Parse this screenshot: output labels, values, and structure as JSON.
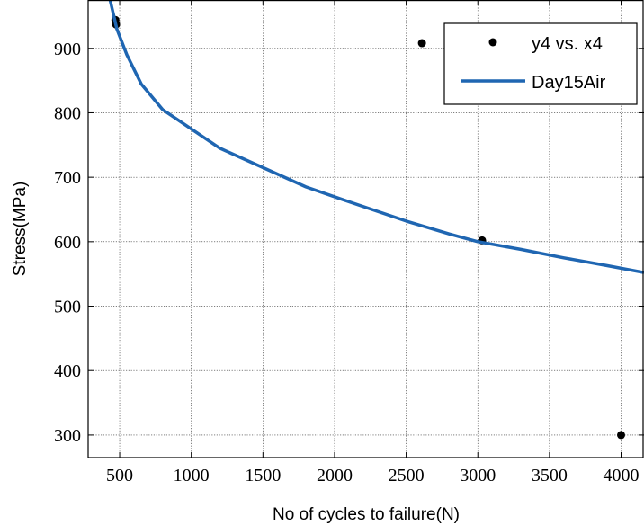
{
  "chart_data": {
    "type": "scatter",
    "xlabel": "No of cycles to failure(N)",
    "ylabel": "Stress(MPa)",
    "xlim": [
      280,
      4160
    ],
    "ylim": [
      265,
      975
    ],
    "xticks": [
      500,
      1000,
      1500,
      2000,
      2500,
      3000,
      3500,
      4000
    ],
    "yticks": [
      300,
      400,
      500,
      600,
      700,
      800,
      900
    ],
    "grid": true,
    "legend_position": "top-right",
    "series": [
      {
        "name": "y4 vs. x4",
        "kind": "scatter",
        "color": "#000000",
        "points": [
          [
            470,
            944
          ],
          [
            475,
            937
          ],
          [
            2610,
            908
          ],
          [
            3030,
            602
          ],
          [
            4000,
            300
          ]
        ]
      },
      {
        "name": "Day15Air",
        "kind": "line",
        "color": "#1f66b2",
        "x": [
          430,
          480,
          550,
          650,
          800,
          1000,
          1200,
          1500,
          1800,
          2100,
          2500,
          2800,
          3000,
          3300,
          3600,
          3900,
          4160
        ],
        "y": [
          978,
          930,
          890,
          845,
          805,
          775,
          745,
          715,
          685,
          662,
          632,
          612,
          600,
          588,
          575,
          563,
          552
        ]
      }
    ]
  }
}
